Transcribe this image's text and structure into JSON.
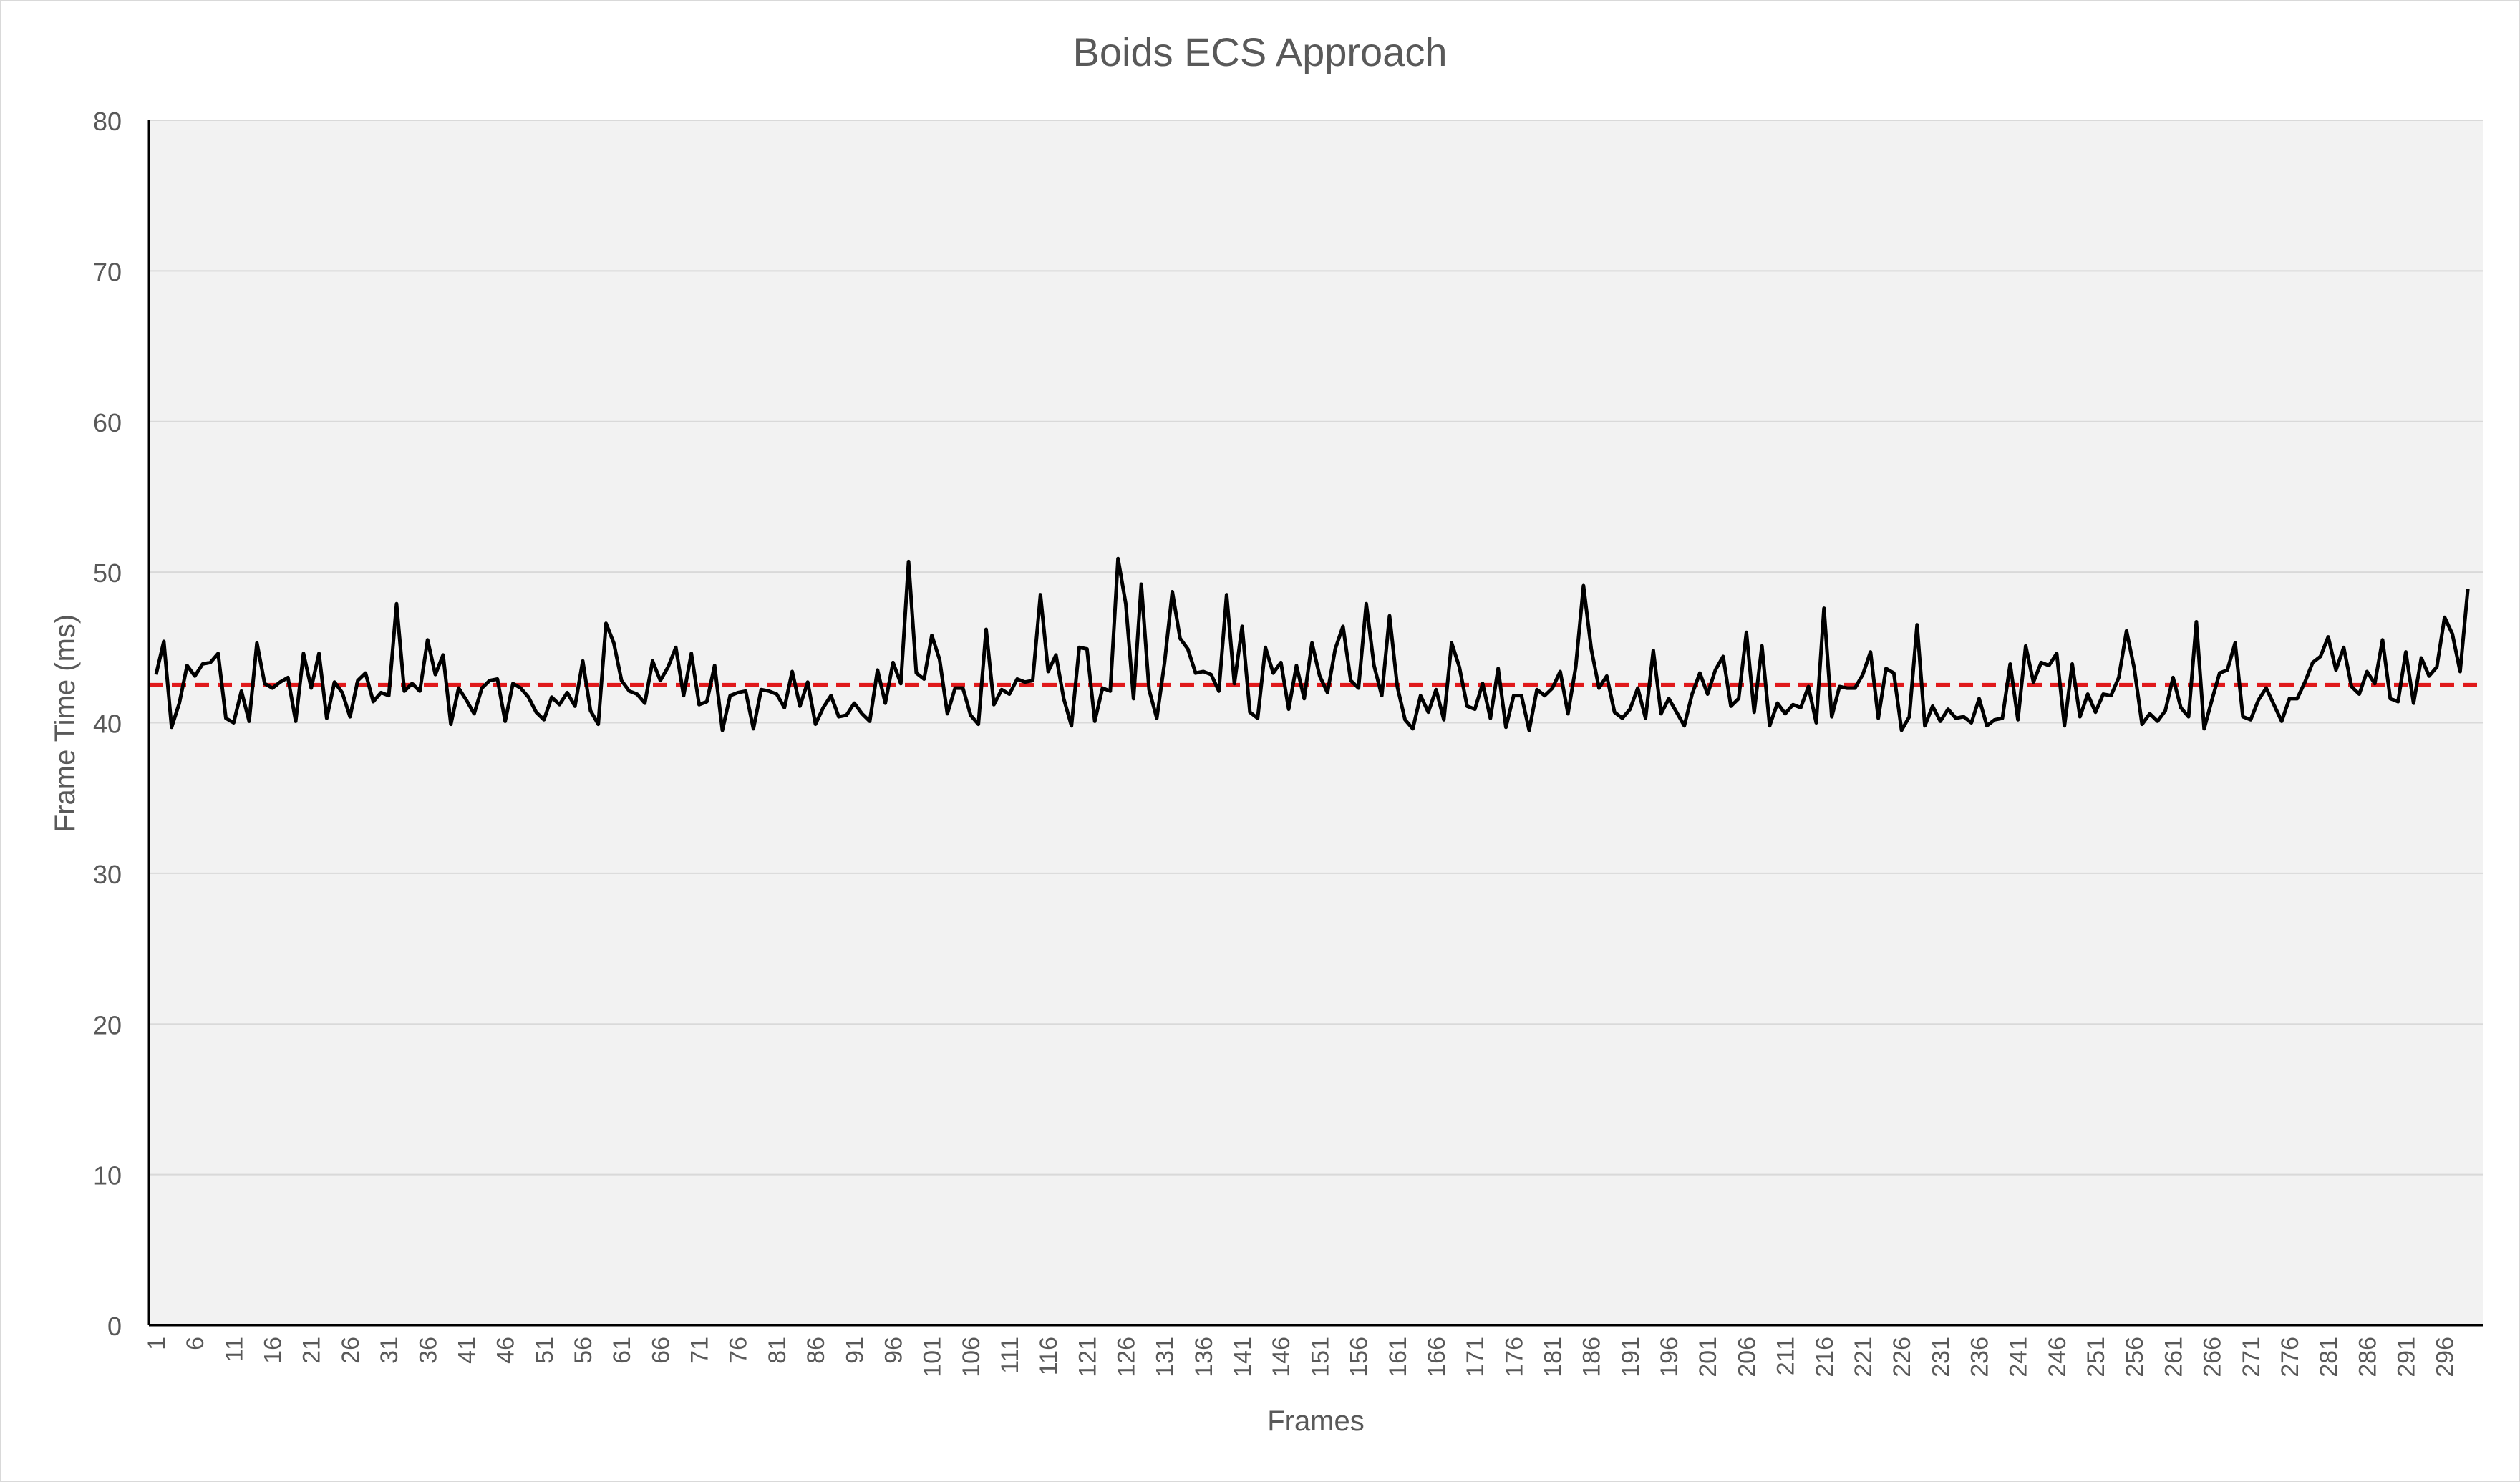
{
  "chart_data": {
    "type": "line",
    "title": "Boids ECS Approach",
    "xlabel": "Frames",
    "ylabel": "Frame Time (ms)",
    "ylim": [
      0,
      80
    ],
    "yticks": [
      0,
      10,
      20,
      30,
      40,
      50,
      60,
      70,
      80
    ],
    "xlim": [
      1,
      300
    ],
    "xticks": [
      1,
      6,
      11,
      16,
      21,
      26,
      31,
      36,
      41,
      46,
      51,
      56,
      61,
      66,
      71,
      76,
      81,
      86,
      91,
      96,
      101,
      106,
      111,
      116,
      121,
      126,
      131,
      136,
      141,
      146,
      151,
      156,
      161,
      166,
      171,
      176,
      181,
      186,
      191,
      196,
      201,
      206,
      211,
      216,
      221,
      226,
      231,
      236,
      241,
      246,
      251,
      256,
      261,
      266,
      271,
      276,
      281,
      286,
      291,
      296
    ],
    "grid": true,
    "legend": "none",
    "colors": {
      "series": "#000000",
      "average": "#e0191b",
      "plot_background": "#f2f2f2",
      "gridline": "#d9d9d9",
      "text": "#595959"
    },
    "series": [
      {
        "x_start": 1,
        "values": [
          43.2,
          45.4,
          39.7,
          41.3,
          43.8,
          43.1,
          43.9,
          44.0,
          44.6,
          40.3,
          40.0,
          42.1,
          40.1,
          45.3,
          42.6,
          42.3,
          42.7,
          43.0,
          40.1,
          44.6,
          42.3,
          44.6,
          40.3,
          42.7,
          42.0,
          40.4,
          42.8,
          43.3,
          41.4,
          42.0,
          41.8,
          47.9,
          42.1,
          42.6,
          42.1,
          45.5,
          43.2,
          44.5,
          39.9,
          42.3,
          41.5,
          40.6,
          42.3,
          42.8,
          42.9,
          40.1,
          42.6,
          42.3,
          41.7,
          40.7,
          40.2,
          41.7,
          41.2,
          42.0,
          41.1,
          44.1,
          40.8,
          39.9,
          46.6,
          45.3,
          42.8,
          42.1,
          41.9,
          41.3,
          44.1,
          42.8,
          43.7,
          45.0,
          41.8,
          44.6,
          41.2,
          41.4,
          43.8,
          39.5,
          41.8,
          42.0,
          42.1,
          39.6,
          42.2,
          42.1,
          41.9,
          41.0,
          43.4,
          41.1,
          42.7,
          39.9,
          41.0,
          41.8,
          40.4,
          40.5,
          41.3,
          40.6,
          40.1,
          43.5,
          41.3,
          44.0,
          42.6,
          50.7,
          43.3,
          42.9,
          45.8,
          44.2,
          40.6,
          42.3,
          42.3,
          40.5,
          39.9,
          46.2,
          41.2,
          42.2,
          41.9,
          42.9,
          42.7,
          42.8,
          48.5,
          43.4,
          44.5,
          41.6,
          39.8,
          45.0,
          44.9,
          40.1,
          42.3,
          42.1,
          50.9,
          47.9,
          41.6,
          49.2,
          42.2,
          40.3,
          44.0,
          48.7,
          45.6,
          44.9,
          43.3,
          43.4,
          43.2,
          42.1,
          48.5,
          42.6,
          46.4,
          40.7,
          40.3,
          45.0,
          43.3,
          44.0,
          40.9,
          43.8,
          41.6,
          45.3,
          43.1,
          42.0,
          44.9,
          46.4,
          42.8,
          42.3,
          47.9,
          43.8,
          41.8,
          47.1,
          42.4,
          40.2,
          39.6,
          41.8,
          40.7,
          42.2,
          40.2,
          45.3,
          43.7,
          41.1,
          40.9,
          42.6,
          40.3,
          43.6,
          39.7,
          41.8,
          41.8,
          39.5,
          42.2,
          41.8,
          42.3,
          43.4,
          40.6,
          43.7,
          49.1,
          44.9,
          42.3,
          43.1,
          40.7,
          40.3,
          40.9,
          42.3,
          40.3,
          44.8,
          40.6,
          41.6,
          40.7,
          39.8,
          41.9,
          43.3,
          41.9,
          43.5,
          44.4,
          41.1,
          41.6,
          46.0,
          40.7,
          45.1,
          39.8,
          41.3,
          40.6,
          41.2,
          41.0,
          42.4,
          40.0,
          47.6,
          40.4,
          42.4,
          42.3,
          42.3,
          43.2,
          44.7,
          40.3,
          43.6,
          43.3,
          39.5,
          40.4,
          46.5,
          39.8,
          41.1,
          40.1,
          40.9,
          40.3,
          40.4,
          40.0,
          41.6,
          39.8,
          40.2,
          40.3,
          43.9,
          40.2,
          45.1,
          42.7,
          44.0,
          43.8,
          44.6,
          39.8,
          43.9,
          40.4,
          41.9,
          40.7,
          41.9,
          41.8,
          43.0,
          46.1,
          43.6,
          39.9,
          40.6,
          40.1,
          40.8,
          43.0,
          41.0,
          40.4,
          46.7,
          39.6,
          41.5,
          43.3,
          43.5,
          45.3,
          40.4,
          40.2,
          41.5,
          42.3,
          41.2,
          40.1,
          41.6,
          41.6,
          42.7,
          44.0,
          44.4,
          45.7,
          43.5,
          45.0,
          42.4,
          41.9,
          43.4,
          42.6,
          45.5,
          41.6,
          41.4,
          44.7,
          41.3,
          44.3,
          43.1,
          43.7,
          47.0,
          45.9,
          43.4,
          48.9
        ]
      }
    ],
    "reference_lines": [
      {
        "kind": "average",
        "value": 42.5
      }
    ]
  }
}
